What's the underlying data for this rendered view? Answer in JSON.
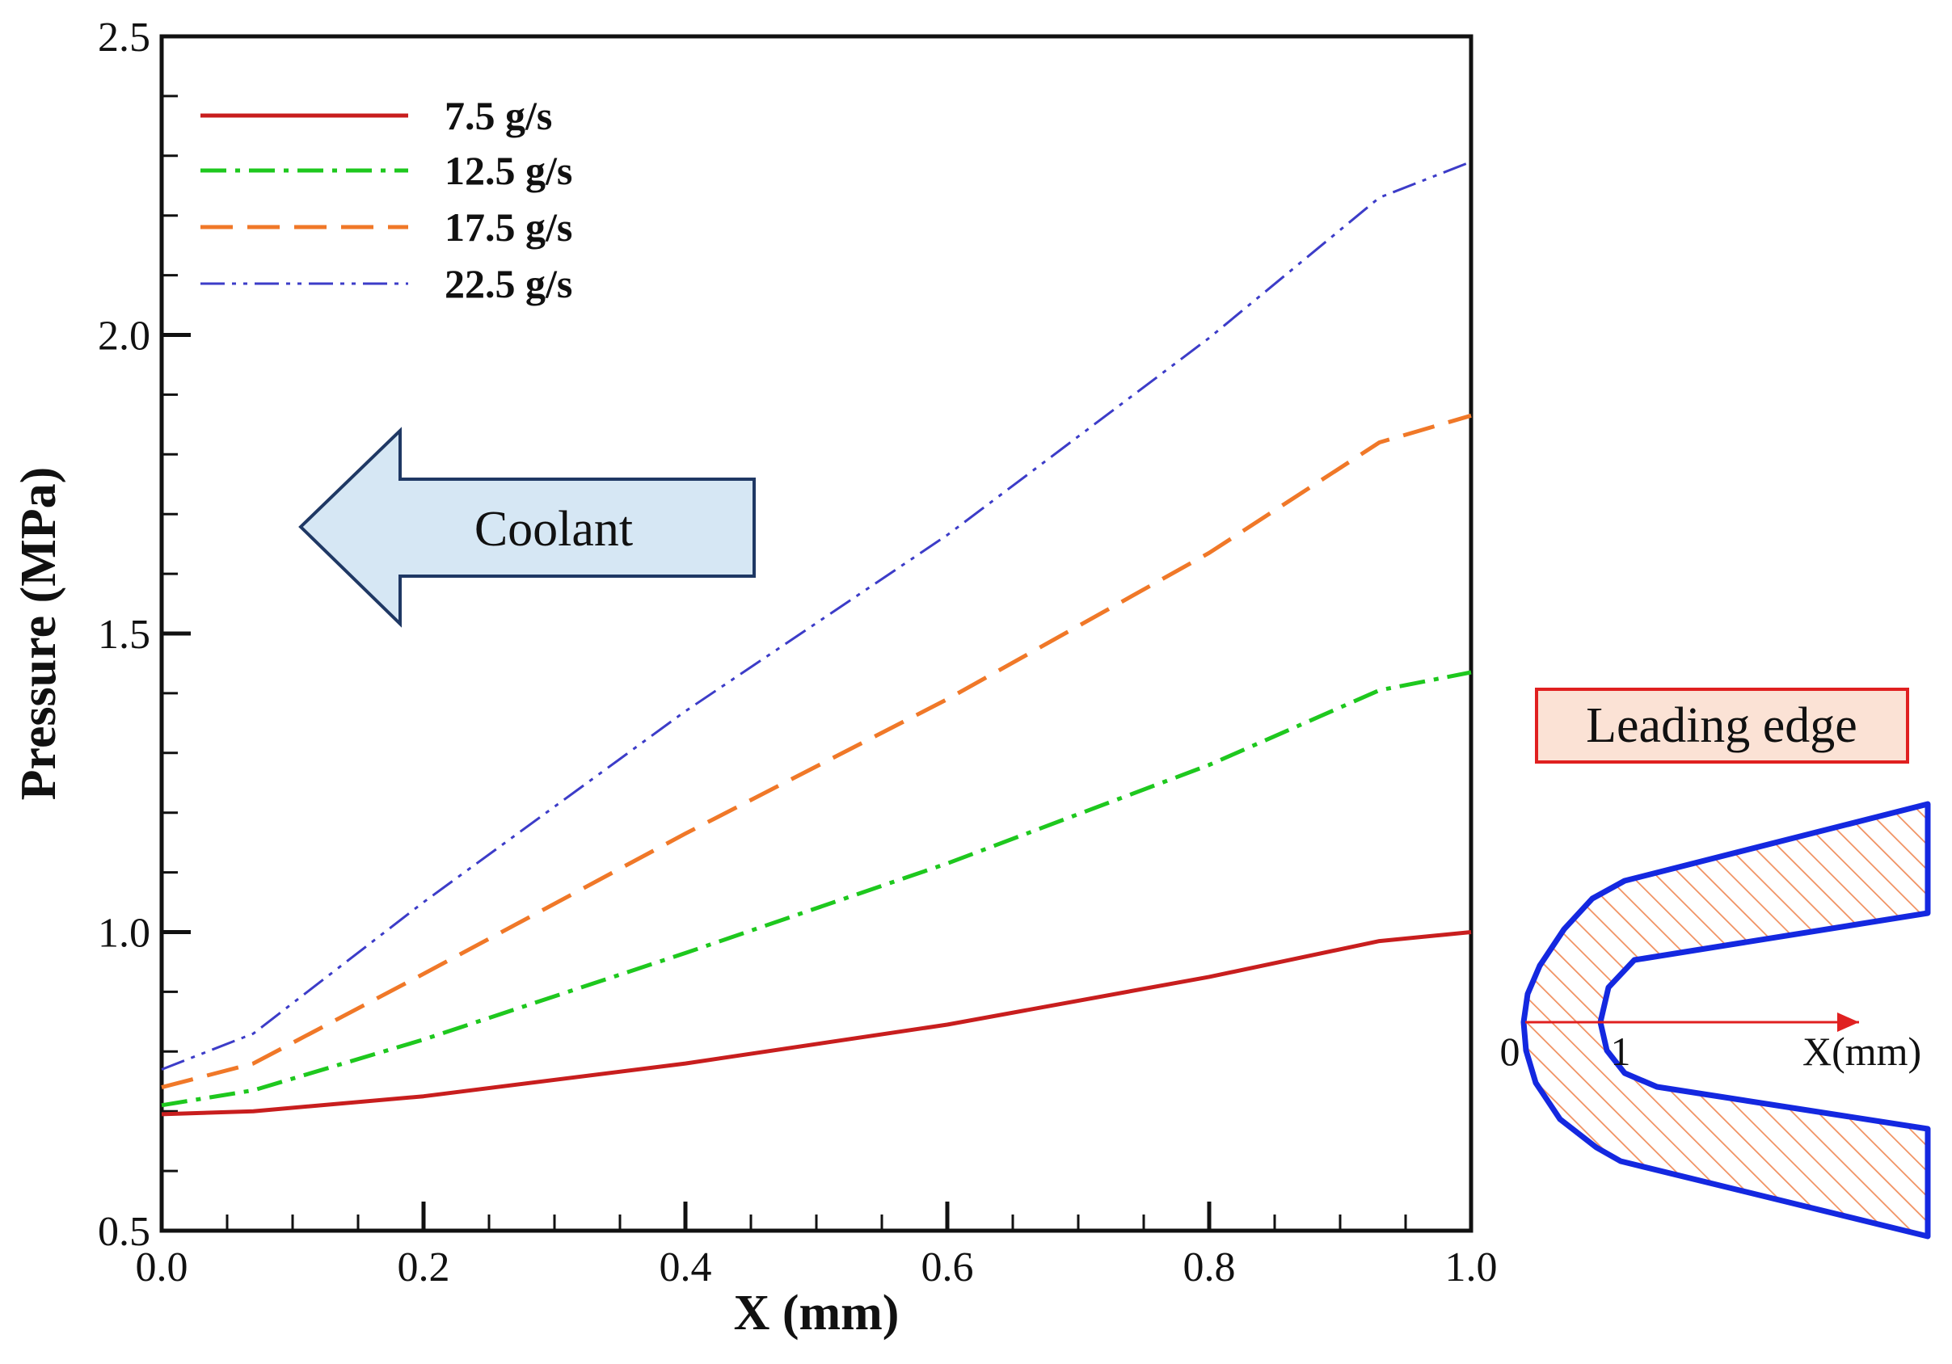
{
  "chart_data": {
    "type": "line",
    "title": "",
    "xlabel": "X (mm)",
    "ylabel": "Pressure (MPa)",
    "xlim": [
      0.0,
      1.0
    ],
    "ylim": [
      0.5,
      2.5
    ],
    "x_major_ticks": [
      0.0,
      0.2,
      0.4,
      0.6,
      0.8,
      1.0
    ],
    "x_tick_labels": [
      "0.0",
      "0.2",
      "0.4",
      "0.6",
      "0.8",
      "1.0"
    ],
    "y_major_ticks": [
      0.5,
      1.0,
      1.5,
      2.0,
      2.5
    ],
    "y_tick_labels": [
      "0.5",
      "1.0",
      "1.5",
      "2.0",
      "2.5"
    ],
    "grid": false,
    "legend_position": "top-left",
    "series": [
      {
        "name": "7.5 g/s",
        "color": "#c81e1e",
        "dash": "solid",
        "x": [
          0.0,
          0.07,
          0.2,
          0.4,
          0.6,
          0.8,
          0.93,
          1.0
        ],
        "y": [
          0.695,
          0.7,
          0.725,
          0.78,
          0.845,
          0.925,
          0.985,
          1.0
        ]
      },
      {
        "name": "12.5 g/s",
        "color": "#1ec81e",
        "dash": "dash-dot",
        "x": [
          0.0,
          0.07,
          0.2,
          0.4,
          0.6,
          0.8,
          0.93,
          1.0
        ],
        "y": [
          0.71,
          0.735,
          0.82,
          0.965,
          1.115,
          1.28,
          1.405,
          1.435
        ]
      },
      {
        "name": "17.5 g/s",
        "color": "#f07828",
        "dash": "long-dash",
        "x": [
          0.0,
          0.07,
          0.2,
          0.4,
          0.6,
          0.8,
          0.93,
          1.0
        ],
        "y": [
          0.74,
          0.78,
          0.93,
          1.165,
          1.39,
          1.635,
          1.82,
          1.865
        ]
      },
      {
        "name": "22.5 g/s",
        "color": "#3c3cc8",
        "dash": "dash-dot-dot",
        "x": [
          0.0,
          0.07,
          0.2,
          0.4,
          0.6,
          0.8,
          0.93,
          1.0
        ],
        "y": [
          0.77,
          0.83,
          1.05,
          1.37,
          1.665,
          1.995,
          2.23,
          2.29
        ]
      }
    ],
    "annotations": {
      "coolant_arrow_label": "Coolant",
      "coolant_arrow_direction": "left",
      "inset_title": "Leading edge",
      "inset_origin_label": "0",
      "inset_one_label": "1",
      "inset_axis_label": "X(mm)"
    }
  },
  "colors": {
    "axis": "#111111",
    "arrow_fill": "#d6e7f4",
    "arrow_stroke": "#1f3864",
    "inset_box_fill": "#fbe2d5",
    "inset_box_stroke": "#e02020",
    "inset_outline": "#1428e0",
    "inset_hatch": "#f09060",
    "inset_axis_arrow": "#e02020"
  }
}
